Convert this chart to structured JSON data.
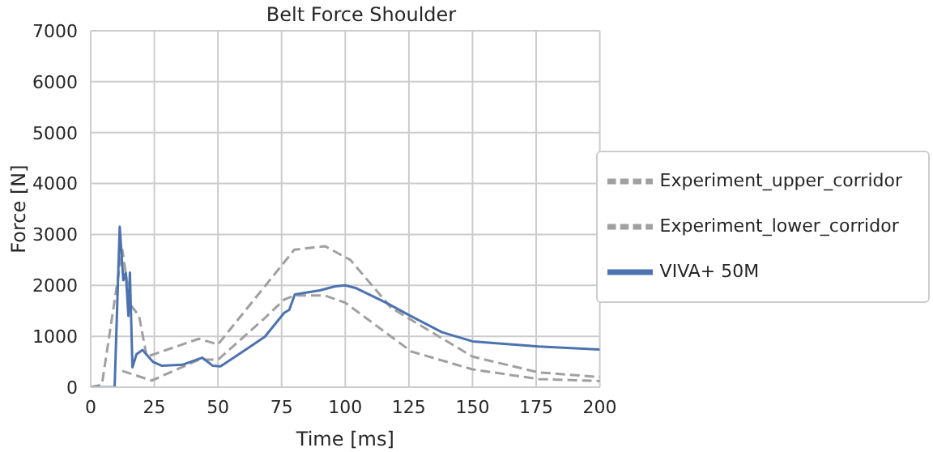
{
  "chart_data": {
    "type": "line",
    "title": "Belt Force Shoulder",
    "xlabel": "Time [ms]",
    "ylabel": "Force [N]",
    "xlim": [
      0,
      200
    ],
    "xticks": [
      0,
      25,
      50,
      75,
      100,
      125,
      150,
      175,
      200
    ],
    "ylim": [
      0,
      7000
    ],
    "yticks": [
      0,
      1000,
      2000,
      3000,
      4000,
      5000,
      6000,
      7000
    ],
    "grid": true,
    "legend": "right",
    "marker": "none",
    "series": [
      {
        "name": "Experiment_upper_corridor",
        "color": "#a0a0a0",
        "line_style": "dashed",
        "x": [
          0,
          4.4,
          12.4,
          15.6,
          19,
          22,
          42.5,
          50,
          80,
          92,
          102,
          118,
          150,
          176,
          200
        ],
        "values": [
          0,
          50,
          2700,
          1620,
          1400,
          600,
          950,
          840,
          2700,
          2770,
          2500,
          1560,
          600,
          290,
          200
        ]
      },
      {
        "name": "Experiment_lower_corridor",
        "color": "#a0a0a0",
        "line_style": "dashed",
        "x": [
          12.4,
          24,
          42.5,
          50,
          68,
          76,
          80,
          92,
          100,
          126,
          150,
          176,
          200
        ],
        "values": [
          320,
          130,
          540,
          540,
          1340,
          1720,
          1800,
          1800,
          1660,
          700,
          350,
          160,
          120
        ]
      },
      {
        "name": "VIVA+ 50M",
        "color": "#4c72b0",
        "line_style": "solid",
        "x": [
          0,
          9.4,
          11.4,
          12.8,
          13.8,
          14.8,
          15.4,
          16.4,
          18,
          20.4,
          24.4,
          28,
          36,
          43.8,
          48,
          51,
          58,
          68.4,
          76,
          78,
          80.2,
          90,
          96,
          100,
          104,
          116,
          126,
          138,
          150,
          176,
          200
        ],
        "values": [
          0,
          0,
          3150,
          2100,
          2250,
          1400,
          2250,
          390,
          650,
          730,
          500,
          420,
          440,
          580,
          420,
          410,
          640,
          990,
          1460,
          1520,
          1820,
          1900,
          1980,
          2000,
          1950,
          1660,
          1390,
          1080,
          900,
          800,
          740
        ]
      }
    ]
  }
}
